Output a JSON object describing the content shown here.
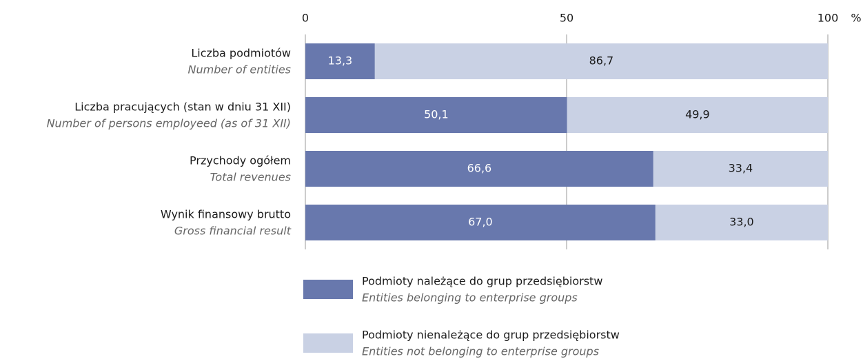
{
  "chart_data": {
    "type": "stacked-barh",
    "categories": [
      "Liczba podmiotów",
      "Liczba pracujących (stan w dniu 31 XII)",
      "Przychody ogółem",
      "Wynik finansowy brutto"
    ],
    "categories_en": [
      "Number of entities",
      "Number of persons employeed (as of 31 XII)",
      "Total revenues",
      "Gross financial result"
    ],
    "series": [
      {
        "name": "Podmioty należące do grup przedsiębiorstw",
        "name_en": "Entities belonging to enterprise groups",
        "color": "#6878ad",
        "values": [
          13.3,
          50.1,
          66.6,
          67.0
        ],
        "value_labels": [
          "13,3",
          "50,1",
          "66,6",
          "67,0"
        ]
      },
      {
        "name": "Podmioty nienależące do grup przedsiębiorstw",
        "name_en": "Entities not belonging to enterprise groups",
        "color": "#c9d1e4",
        "values": [
          86.7,
          49.9,
          33.4,
          33.0
        ],
        "value_labels": [
          "86,7",
          "49,9",
          "33,4",
          "33,0"
        ]
      }
    ],
    "xlim": [
      0,
      100
    ],
    "xticks": [
      0,
      50,
      100
    ],
    "x_unit": "%",
    "grid": true
  }
}
